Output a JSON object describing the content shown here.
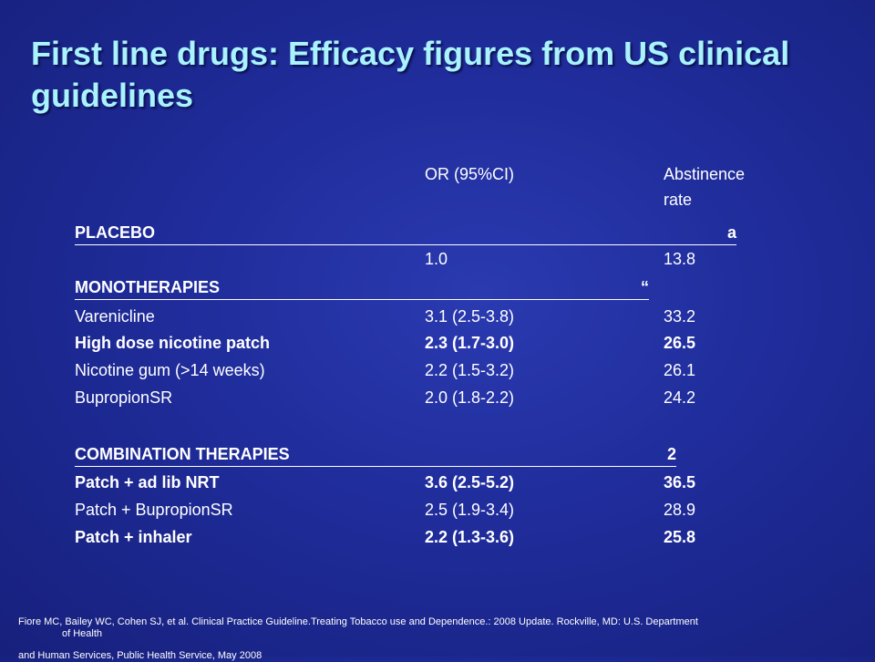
{
  "title": "First line drugs: Efficacy figures from US clinical guidelines",
  "table": {
    "header": {
      "or": "OR (95%CI)",
      "abstinence_line1": "Abstinence",
      "abstinence_line2": "rate"
    },
    "placebo": {
      "label": "PLACEBO",
      "mark": "a",
      "or": "1.0",
      "rate": "13.8"
    },
    "mono": {
      "label": "MONOTHERAPIES",
      "mark": "“",
      "rows": [
        {
          "name": "Varenicline",
          "or": "3.1 (2.5-3.8)",
          "rate": "33.2"
        },
        {
          "name": "High dose nicotine patch",
          "or": "2.3 (1.7-3.0)",
          "rate": "26.5"
        },
        {
          "name": "Nicotine gum (>14 weeks)",
          "or": "2.2 (1.5-3.2)",
          "rate": "26.1"
        },
        {
          "name": "BupropionSR",
          "or": "2.0 (1.8-2.2)",
          "rate": "24.2"
        }
      ]
    },
    "combo": {
      "label": "COMBINATION THERAPIES",
      "mark": "2",
      "rows": [
        {
          "name": "Patch + ad lib NRT",
          "or": "3.6 (2.5-5.2)",
          "rate": "36.5"
        },
        {
          "name": "Patch + BupropionSR",
          "or": "2.5 (1.9-3.4)",
          "rate": "28.9"
        },
        {
          "name": "Patch + inhaler",
          "or": "2.2 (1.3-3.6)",
          "rate": "25.8"
        }
      ]
    }
  },
  "footnote": {
    "line1": "Fiore MC, Bailey WC, Cohen SJ, et al. Clinical Practice Guideline.Treating Tobacco use and Dependence.: 2008 Update. Rockville, MD: U.S. Department",
    "line2": "of Health",
    "line3": "and Human Services, Public Health Service, May 2008"
  }
}
